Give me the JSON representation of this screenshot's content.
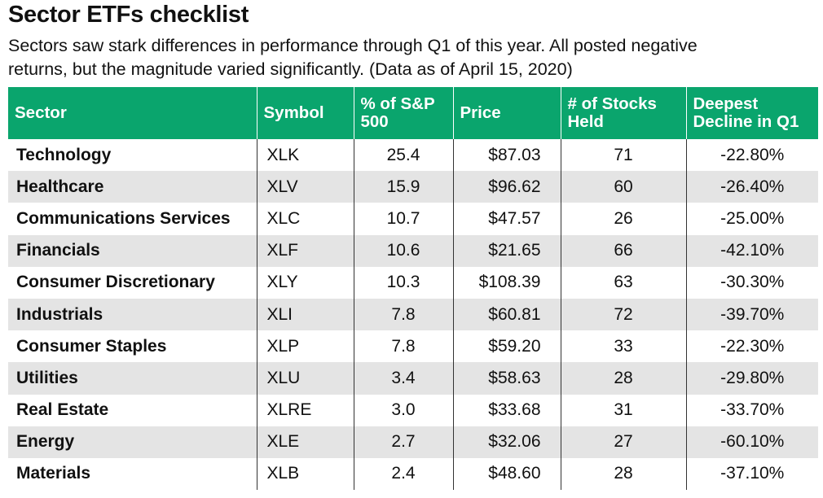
{
  "title": "Sector ETFs checklist",
  "subtitle": "Sectors saw stark differences in performance through Q1 of this year.  All posted negative returns, but the magnitude varied significantly. (Data as of April 15, 2020)",
  "colors": {
    "header_bg": "#0aa56d",
    "stripe": "#e4e4e4"
  },
  "table": {
    "headers": [
      "Sector",
      "Symbol",
      "% of S&P 500",
      "Price",
      "# of Stocks Held",
      "Deepest Decline in Q1"
    ],
    "rows": [
      [
        "Technology",
        "XLK",
        "25.4",
        "$87.03",
        "71",
        "-22.80%"
      ],
      [
        "Healthcare",
        "XLV",
        "15.9",
        "$96.62",
        "60",
        "-26.40%"
      ],
      [
        "Communications Services",
        "XLC",
        "10.7",
        "$47.57",
        "26",
        "-25.00%"
      ],
      [
        "Financials",
        "XLF",
        "10.6",
        "$21.65",
        "66",
        "-42.10%"
      ],
      [
        "Consumer Discretionary",
        "XLY",
        "10.3",
        "$108.39",
        "63",
        "-30.30%"
      ],
      [
        "Industrials",
        "XLI",
        "7.8",
        "$60.81",
        "72",
        "-39.70%"
      ],
      [
        "Consumer Staples",
        "XLP",
        "7.8",
        "$59.20",
        "33",
        "-22.30%"
      ],
      [
        "Utilities",
        "XLU",
        "3.4",
        "$58.63",
        "28",
        "-29.80%"
      ],
      [
        "Real Estate",
        "XLRE",
        "3.0",
        "$33.68",
        "31",
        "-33.70%"
      ],
      [
        "Energy",
        "XLE",
        "2.7",
        "$32.06",
        "27",
        "-60.10%"
      ],
      [
        "Materials",
        "XLB",
        "2.4",
        "$48.60",
        "28",
        "-37.10%"
      ]
    ]
  }
}
